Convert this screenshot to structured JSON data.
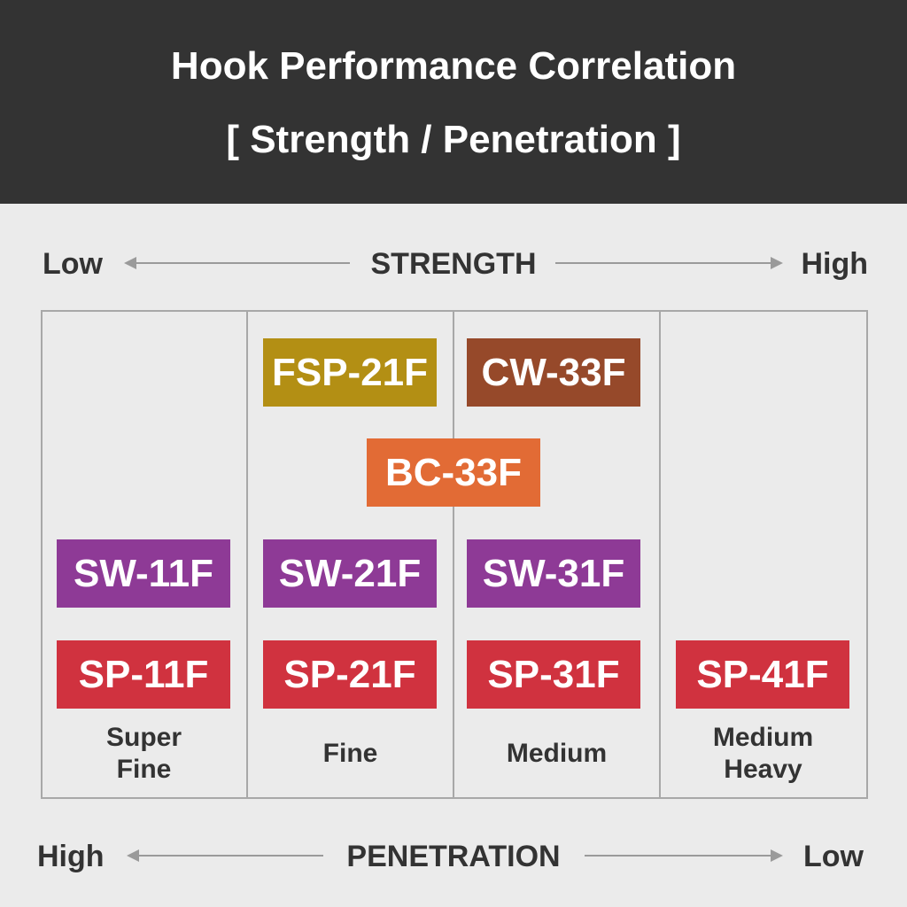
{
  "header": {
    "title": "Hook Performance Correlation",
    "subtitle": "[ Strength / Penetration ]"
  },
  "strength_axis": {
    "label": "STRENGTH",
    "left": "Low",
    "right": "High"
  },
  "penetration_axis": {
    "label": "PENETRATION",
    "left": "High",
    "right": "Low"
  },
  "columns": [
    {
      "label": [
        "Super",
        "Fine"
      ],
      "hooks": [
        "SW-11F",
        "SP-11F"
      ]
    },
    {
      "label": [
        "Fine"
      ],
      "hooks": [
        "FSP-21F",
        "SW-21F",
        "SP-21F"
      ]
    },
    {
      "label": [
        "Medium"
      ],
      "hooks": [
        "CW-33F",
        "SW-31F",
        "SP-31F"
      ]
    },
    {
      "label": [
        "Medium",
        "Heavy"
      ],
      "hooks": [
        "SP-41F"
      ]
    }
  ],
  "spanning_hooks": [
    "BC-33F"
  ]
}
